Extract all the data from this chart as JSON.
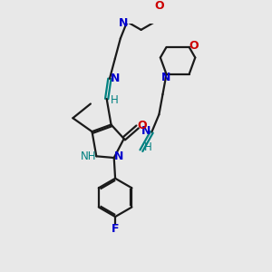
{
  "bg_color": "#e8e8e8",
  "bond_color": "#1a1a1a",
  "N_color": "#0000cc",
  "O_color": "#cc0000",
  "F_color": "#0000cc",
  "teal_color": "#008080",
  "line_width": 1.6,
  "figsize": [
    3.0,
    3.0
  ],
  "dpi": 100,
  "xlim": [
    0,
    10
  ],
  "ylim": [
    0,
    10
  ]
}
